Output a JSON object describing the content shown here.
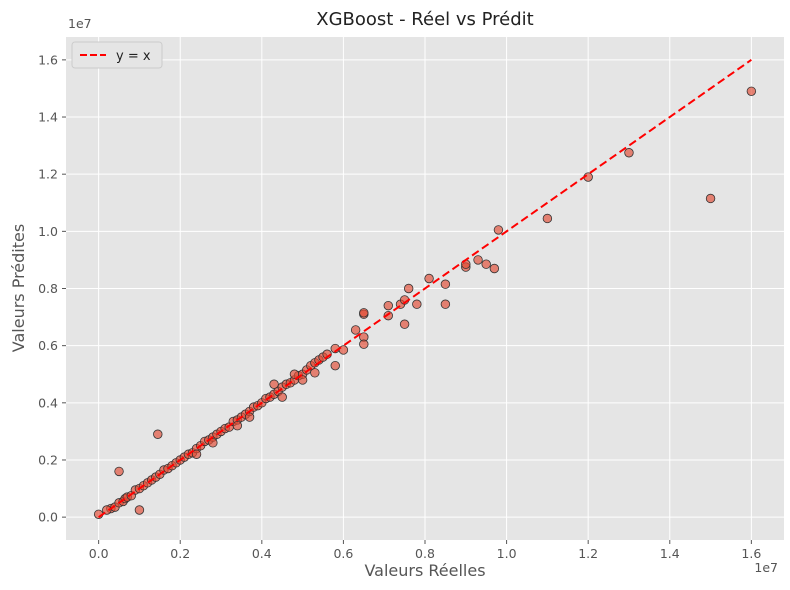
{
  "chart_data": {
    "type": "scatter",
    "title": "XGBoost - Réel vs Prédit",
    "xlabel": "Valeurs Réelles",
    "ylabel": "Valeurs Prédites",
    "x_offset_label": "1e7",
    "y_offset_label": "1e7",
    "xlim": [
      -800000,
      16800000
    ],
    "ylim": [
      -800000,
      16800000
    ],
    "x_ticks": [
      0,
      2000000,
      4000000,
      6000000,
      8000000,
      10000000,
      12000000,
      14000000,
      16000000
    ],
    "x_tick_labels": [
      "0.0",
      "0.2",
      "0.4",
      "0.6",
      "0.8",
      "1.0",
      "1.2",
      "1.4",
      "1.6"
    ],
    "y_ticks": [
      0,
      2000000,
      4000000,
      6000000,
      8000000,
      10000000,
      12000000,
      14000000,
      16000000
    ],
    "y_tick_labels": [
      "0.0",
      "0.2",
      "0.4",
      "0.6",
      "0.8",
      "1.0",
      "1.2",
      "1.4",
      "1.6"
    ],
    "grid": true,
    "legend": {
      "position": "top-left",
      "entries": [
        "y = x"
      ]
    },
    "reference_line": {
      "label": "y = x",
      "x": [
        0,
        16000000
      ],
      "y": [
        0,
        16000000
      ],
      "color": "#ff0000",
      "style": "dashed"
    },
    "point_color": "#e24a33",
    "points": [
      [
        0,
        100000
      ],
      [
        300000,
        300000
      ],
      [
        400000,
        350000
      ],
      [
        500000,
        500000
      ],
      [
        600000,
        550000
      ],
      [
        650000,
        650000
      ],
      [
        700000,
        700000
      ],
      [
        800000,
        750000
      ],
      [
        900000,
        950000
      ],
      [
        1000000,
        1000000
      ],
      [
        1100000,
        1100000
      ],
      [
        1200000,
        1200000
      ],
      [
        1300000,
        1300000
      ],
      [
        1400000,
        1400000
      ],
      [
        1500000,
        1500000
      ],
      [
        1600000,
        1650000
      ],
      [
        1700000,
        1700000
      ],
      [
        1800000,
        1800000
      ],
      [
        1900000,
        1900000
      ],
      [
        2000000,
        2000000
      ],
      [
        2100000,
        2100000
      ],
      [
        2200000,
        2200000
      ],
      [
        2300000,
        2250000
      ],
      [
        2400000,
        2400000
      ],
      [
        2500000,
        2500000
      ],
      [
        2600000,
        2650000
      ],
      [
        2700000,
        2700000
      ],
      [
        2800000,
        2800000
      ],
      [
        2900000,
        2900000
      ],
      [
        3000000,
        3000000
      ],
      [
        3100000,
        3100000
      ],
      [
        3200000,
        3150000
      ],
      [
        3300000,
        3350000
      ],
      [
        3400000,
        3400000
      ],
      [
        3500000,
        3500000
      ],
      [
        3600000,
        3600000
      ],
      [
        3700000,
        3700000
      ],
      [
        3800000,
        3850000
      ],
      [
        3900000,
        3900000
      ],
      [
        4000000,
        4000000
      ],
      [
        4100000,
        4150000
      ],
      [
        4200000,
        4200000
      ],
      [
        4300000,
        4300000
      ],
      [
        4400000,
        4400000
      ],
      [
        4500000,
        4550000
      ],
      [
        4600000,
        4650000
      ],
      [
        4700000,
        4700000
      ],
      [
        4800000,
        4800000
      ],
      [
        4900000,
        4950000
      ],
      [
        5000000,
        5000000
      ],
      [
        5100000,
        5150000
      ],
      [
        5200000,
        5300000
      ],
      [
        5300000,
        5400000
      ],
      [
        5400000,
        5500000
      ],
      [
        5500000,
        5600000
      ],
      [
        5600000,
        5700000
      ],
      [
        500000,
        1600000
      ],
      [
        1000000,
        250000
      ],
      [
        1450000,
        2900000
      ],
      [
        200000,
        250000
      ],
      [
        2400000,
        2200000
      ],
      [
        2800000,
        2600000
      ],
      [
        3400000,
        3200000
      ],
      [
        3700000,
        3500000
      ],
      [
        4500000,
        4200000
      ],
      [
        4300000,
        4650000
      ],
      [
        5000000,
        4800000
      ],
      [
        5300000,
        5050000
      ],
      [
        4800000,
        5000000
      ],
      [
        5800000,
        5300000
      ],
      [
        5800000,
        5900000
      ],
      [
        6000000,
        5850000
      ],
      [
        6300000,
        6550000
      ],
      [
        6500000,
        7100000
      ],
      [
        6500000,
        7150000
      ],
      [
        6500000,
        6300000
      ],
      [
        6500000,
        6050000
      ],
      [
        7100000,
        7400000
      ],
      [
        7100000,
        7050000
      ],
      [
        7400000,
        7450000
      ],
      [
        7500000,
        7600000
      ],
      [
        7500000,
        6750000
      ],
      [
        7600000,
        8000000
      ],
      [
        7800000,
        7450000
      ],
      [
        8100000,
        8350000
      ],
      [
        8500000,
        8150000
      ],
      [
        8500000,
        7450000
      ],
      [
        9000000,
        8750000
      ],
      [
        9000000,
        8850000
      ],
      [
        9300000,
        9000000
      ],
      [
        9500000,
        8850000
      ],
      [
        9700000,
        8700000
      ],
      [
        9800000,
        10050000
      ],
      [
        11000000,
        10450000
      ],
      [
        12000000,
        11900000
      ],
      [
        13000000,
        12750000
      ],
      [
        15000000,
        11150000
      ],
      [
        16000000,
        14900000
      ]
    ]
  }
}
